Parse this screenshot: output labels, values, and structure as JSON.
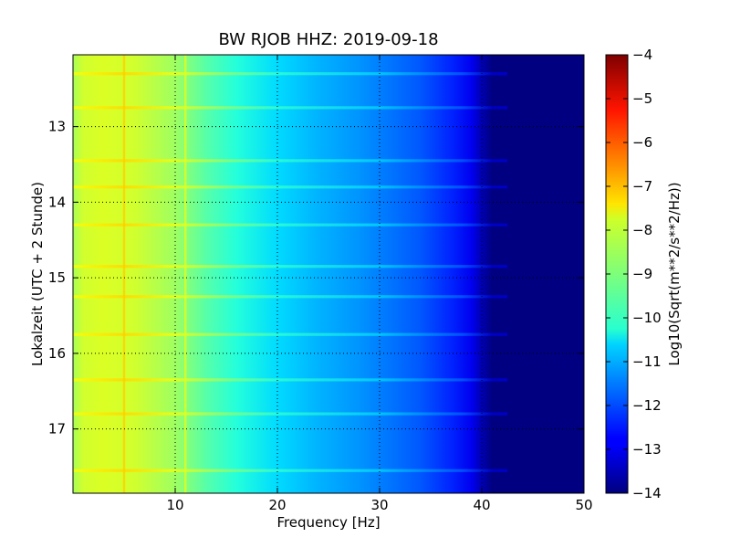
{
  "chart_data": {
    "type": "heatmap",
    "title": "BW RJOB HHZ: 2019-09-18",
    "xlabel": "Frequency [Hz]",
    "ylabel": "Lokalzeit (UTC + 2 Stunde)",
    "xlim": [
      0,
      50
    ],
    "ylim": [
      12.05,
      17.85
    ],
    "y_inverted": true,
    "x_ticks": [
      10,
      20,
      30,
      40,
      50
    ],
    "x_tick_labels": [
      "10",
      "20",
      "30",
      "40",
      "50"
    ],
    "y_ticks": [
      13,
      14,
      15,
      16,
      17
    ],
    "y_tick_labels": [
      "13",
      "14",
      "15",
      "16",
      "17"
    ],
    "grid": true,
    "colormap": "jet",
    "colorbar": {
      "label": "Log10(Sqrt(m**2/s**2/Hz))",
      "range": [
        -14,
        -4
      ],
      "ticks": [
        -4,
        -5,
        -6,
        -7,
        -8,
        -9,
        -10,
        -11,
        -12,
        -13,
        -14
      ],
      "tick_labels": [
        "−4",
        "−5",
        "−6",
        "−7",
        "−8",
        "−9",
        "−10",
        "−11",
        "−12",
        "−13",
        "−14"
      ]
    },
    "spectrum_profile": {
      "frequency_hz": [
        0,
        1,
        3,
        6,
        10,
        13,
        16,
        20,
        24,
        28,
        31,
        34,
        37,
        39,
        40,
        41,
        42,
        50
      ],
      "level": [
        -8.6,
        -8.2,
        -8.1,
        -8.2,
        -8.7,
        -9.4,
        -9.9,
        -10.6,
        -11.0,
        -11.3,
        -11.6,
        -11.9,
        -12.4,
        -12.9,
        -13.5,
        -14.0,
        -14.0,
        -14.0
      ]
    },
    "persistent_lines_hz": [
      5.0,
      11.0
    ],
    "broadband_bursts_hours": [
      12.3,
      12.75,
      13.45,
      13.8,
      14.3,
      14.85,
      15.25,
      15.75,
      16.35,
      16.8,
      17.55
    ]
  }
}
